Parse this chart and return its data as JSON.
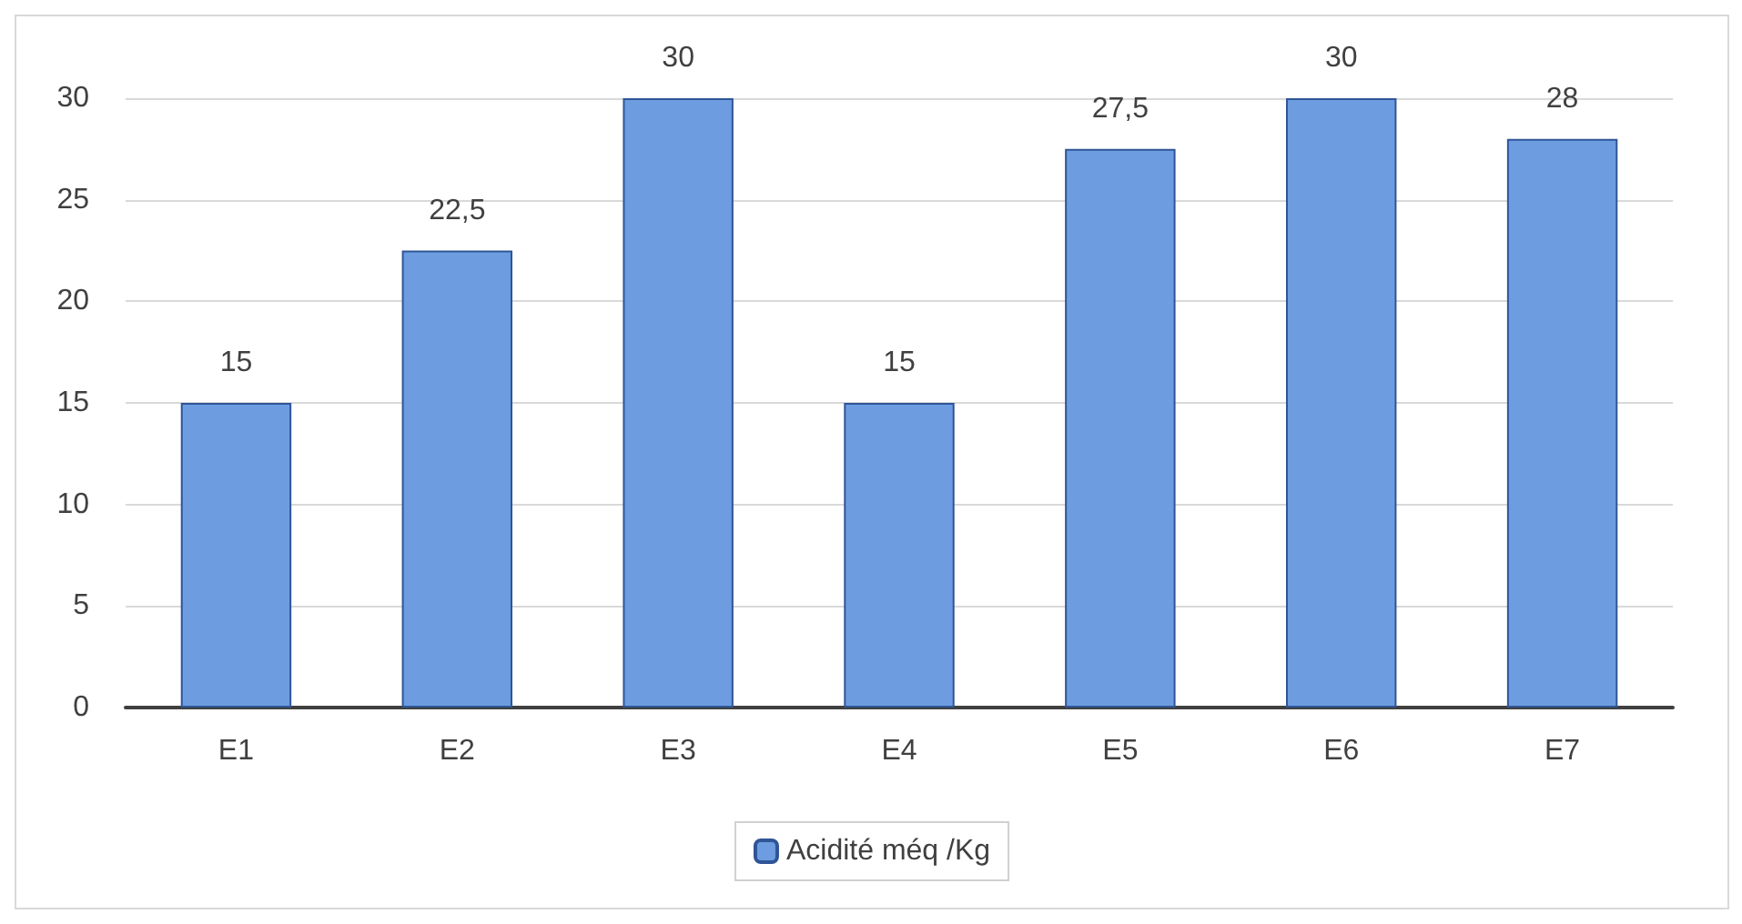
{
  "chart_data": {
    "type": "bar",
    "categories": [
      "E1",
      "E2",
      "E3",
      "E4",
      "E5",
      "E6",
      "E7"
    ],
    "series": [
      {
        "name": "Acidité méq /Kg",
        "color": "#6d9de0",
        "values": [
          15,
          22.5,
          30,
          15,
          27.5,
          30,
          28
        ],
        "value_labels": [
          "15",
          "22,5",
          "30",
          "15",
          "27,5",
          "30",
          "28"
        ]
      }
    ],
    "ylim": [
      0,
      30
    ],
    "yticks": [
      0,
      5,
      10,
      15,
      20,
      25,
      30
    ],
    "grid": "y",
    "legend": "bottom"
  }
}
